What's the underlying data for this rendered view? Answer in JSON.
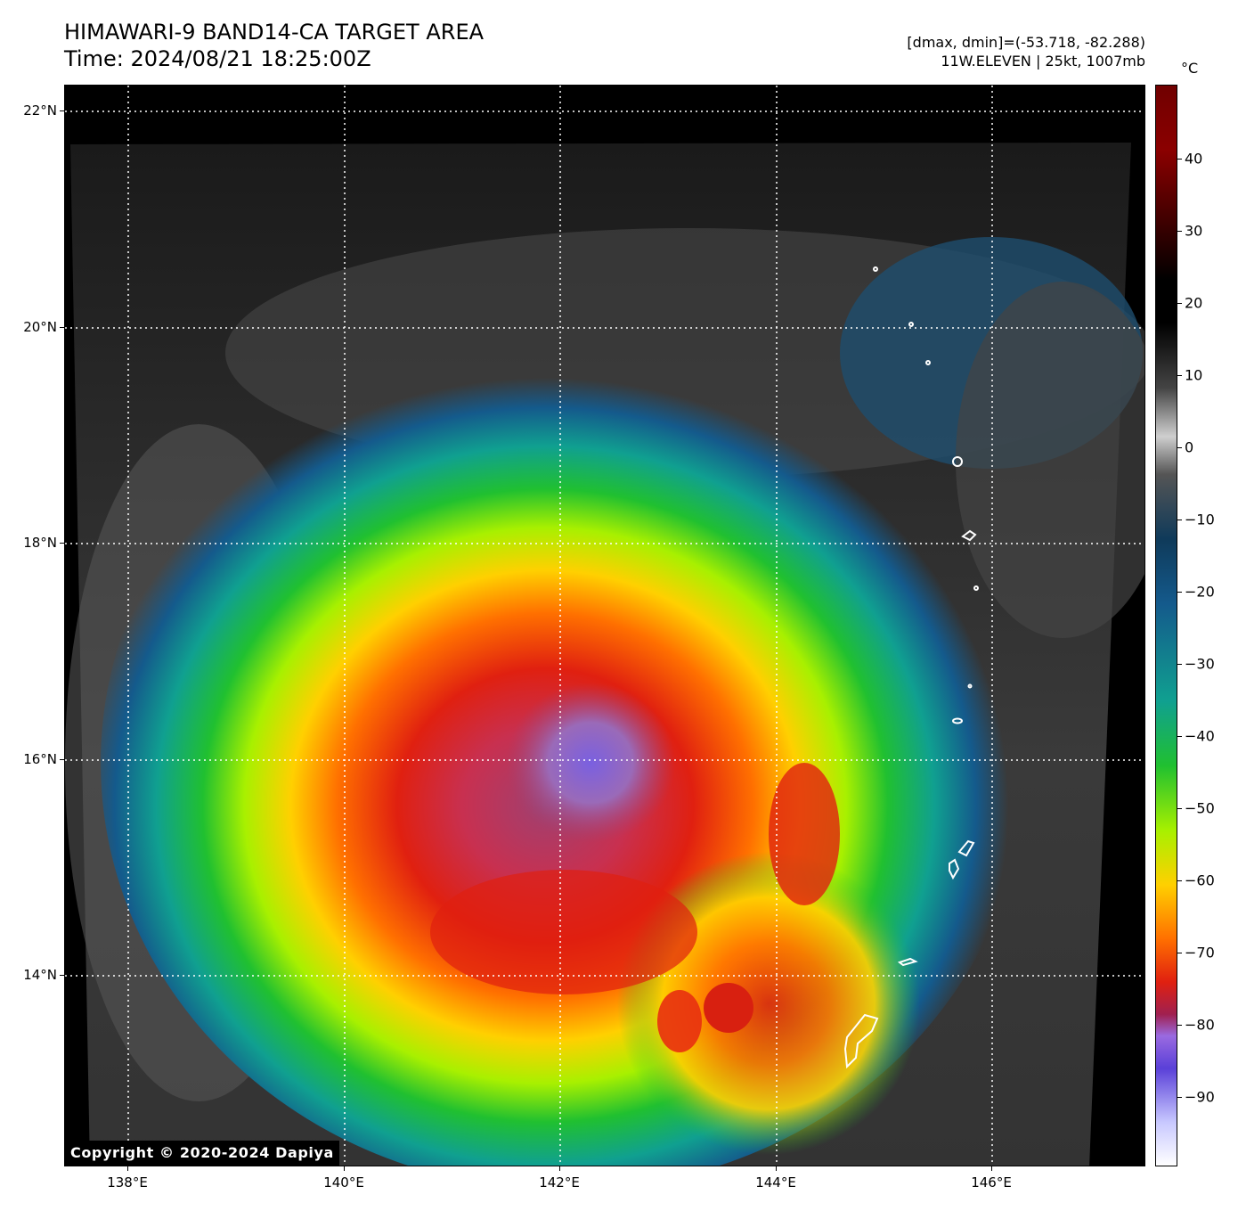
{
  "header": {
    "title_line1": "HIMAWARI-9 BAND14-CA TARGET AREA",
    "title_line2": "Time: 2024/08/21 18:25:00Z",
    "meta_line1": "[dmax, dmin]=(-53.718, -82.288)",
    "meta_line2": "11W.ELEVEN | 25kt, 1007mb"
  },
  "copyright": "Copyright © 2020-2024 Dapiya",
  "axes": {
    "lon_ticks": [
      "138°E",
      "140°E",
      "142°E",
      "144°E",
      "146°E"
    ],
    "lat_ticks": [
      "22°N",
      "20°N",
      "18°N",
      "16°N",
      "14°N"
    ]
  },
  "colorbar": {
    "unit": "°C",
    "ticks": [
      "40",
      "30",
      "20",
      "10",
      "0",
      "−10",
      "−20",
      "−30",
      "−40",
      "−50",
      "−60",
      "−70",
      "−80",
      "−90"
    ]
  },
  "colors": {
    "storm_core": "#a04070",
    "cold_ring": "#e02010",
    "mid_cloud": "#ffd000",
    "outer_cloud": "#10a090",
    "clear_sky": "#1c1c1c",
    "coastline": "#ffffff",
    "gridline": "#ffffff"
  }
}
